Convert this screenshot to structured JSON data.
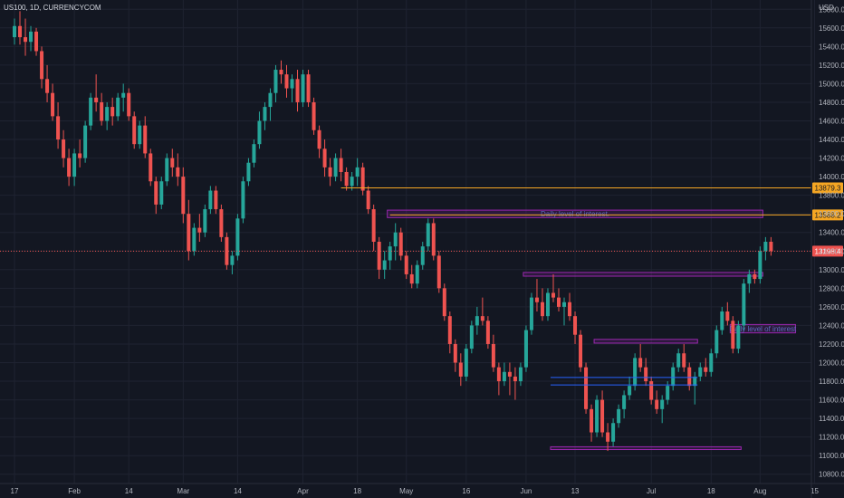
{
  "header": {
    "symbol": "US100, 1D, CURRENCYCOM",
    "currency": "USD"
  },
  "chart_data": {
    "type": "candlestick",
    "title": "US100, 1D, CURRENCYCOM",
    "ylabel": "USD",
    "xlabel": "",
    "ylim": [
      10700,
      15900
    ],
    "grid": true,
    "y_ticks": [
      10800,
      11000,
      11200,
      11400,
      11600,
      11800,
      12000,
      12200,
      12400,
      12600,
      12800,
      13000,
      13200,
      13400,
      13600,
      13800,
      14000,
      14200,
      14400,
      14600,
      14800,
      15000,
      15200,
      15400,
      15600,
      15800
    ],
    "y_tick_labels": [
      "10800.0",
      "11000.0",
      "11200.0",
      "11400.0",
      "11600.0",
      "11800.0",
      "12000.0",
      "12200.0",
      "12400.0",
      "12600.0",
      "12800.0",
      "13000.0",
      "13200.0",
      "13400.0",
      "13600.0",
      "13800.0",
      "14000.0",
      "14200.0",
      "14400.0",
      "14600.0",
      "14800.0",
      "15000.0",
      "15200.0",
      "15400.0",
      "15600.0",
      "15800.0"
    ],
    "x_ticks": [
      {
        "label": "17",
        "index": 0
      },
      {
        "label": "Feb",
        "index": 11
      },
      {
        "label": "14",
        "index": 21
      },
      {
        "label": "Mar",
        "index": 31
      },
      {
        "label": "14",
        "index": 41
      },
      {
        "label": "Apr",
        "index": 53
      },
      {
        "label": "18",
        "index": 63
      },
      {
        "label": "May",
        "index": 72
      },
      {
        "label": "16",
        "index": 83
      },
      {
        "label": "Jun",
        "index": 94
      },
      {
        "label": "13",
        "index": 103
      },
      {
        "label": "Jul",
        "index": 117
      },
      {
        "label": "18",
        "index": 128
      },
      {
        "label": "Aug",
        "index": 137
      },
      {
        "label": "15",
        "index": 147
      }
    ],
    "candles": [
      [
        15500,
        15700,
        15420,
        15620
      ],
      [
        15620,
        15780,
        15420,
        15500
      ],
      [
        15500,
        15700,
        15300,
        15450
      ],
      [
        15450,
        15620,
        15350,
        15560
      ],
      [
        15560,
        15600,
        15300,
        15350
      ],
      [
        15350,
        15400,
        14950,
        15050
      ],
      [
        15050,
        15200,
        14800,
        14900
      ],
      [
        14900,
        15000,
        14600,
        14650
      ],
      [
        14650,
        14800,
        14300,
        14400
      ],
      [
        14400,
        14500,
        14100,
        14200
      ],
      [
        14200,
        14300,
        13900,
        14000
      ],
      [
        14000,
        14300,
        13900,
        14250
      ],
      [
        14250,
        14400,
        14100,
        14200
      ],
      [
        14200,
        14600,
        14150,
        14550
      ],
      [
        14550,
        14900,
        14500,
        14850
      ],
      [
        14850,
        15100,
        14700,
        14800
      ],
      [
        14800,
        14900,
        14550,
        14600
      ],
      [
        14600,
        14800,
        14500,
        14750
      ],
      [
        14750,
        14850,
        14550,
        14650
      ],
      [
        14650,
        14900,
        14600,
        14850
      ],
      [
        14850,
        15000,
        14700,
        14900
      ],
      [
        14900,
        14950,
        14600,
        14650
      ],
      [
        14650,
        14700,
        14300,
        14350
      ],
      [
        14350,
        14600,
        14300,
        14550
      ],
      [
        14550,
        14650,
        14200,
        14250
      ],
      [
        14250,
        14300,
        13900,
        13950
      ],
      [
        13950,
        14000,
        13600,
        13700
      ],
      [
        13700,
        14000,
        13650,
        13950
      ],
      [
        13950,
        14250,
        13900,
        14200
      ],
      [
        14200,
        14300,
        14000,
        14100
      ],
      [
        14100,
        14250,
        13900,
        14000
      ],
      [
        14000,
        14100,
        13500,
        13600
      ],
      [
        13600,
        13750,
        13100,
        13200
      ],
      [
        13200,
        13500,
        13150,
        13450
      ],
      [
        13450,
        13600,
        13300,
        13400
      ],
      [
        13400,
        13700,
        13350,
        13650
      ],
      [
        13650,
        13900,
        13600,
        13850
      ],
      [
        13850,
        13900,
        13600,
        13650
      ],
      [
        13650,
        13700,
        13300,
        13350
      ],
      [
        13350,
        13400,
        13000,
        13050
      ],
      [
        13050,
        13200,
        12950,
        13150
      ],
      [
        13150,
        13600,
        13100,
        13550
      ],
      [
        13550,
        14000,
        13500,
        13950
      ],
      [
        13950,
        14200,
        13900,
        14150
      ],
      [
        14150,
        14400,
        14100,
        14350
      ],
      [
        14350,
        14700,
        14300,
        14600
      ],
      [
        14600,
        14800,
        14500,
        14750
      ],
      [
        14750,
        14950,
        14600,
        14900
      ],
      [
        14900,
        15200,
        14800,
        15150
      ],
      [
        15150,
        15250,
        15000,
        15100
      ],
      [
        15100,
        15200,
        14850,
        14950
      ],
      [
        14950,
        15100,
        14800,
        15050
      ],
      [
        15050,
        15150,
        14700,
        14800
      ],
      [
        14800,
        15150,
        14750,
        15100
      ],
      [
        15100,
        15150,
        14750,
        14800
      ],
      [
        14800,
        14850,
        14450,
        14500
      ],
      [
        14500,
        14550,
        14200,
        14300
      ],
      [
        14300,
        14400,
        14000,
        14100
      ],
      [
        14100,
        14200,
        13900,
        14000
      ],
      [
        14000,
        14250,
        13950,
        14200
      ],
      [
        14200,
        14300,
        13950,
        14050
      ],
      [
        14050,
        14100,
        13850,
        13900
      ],
      [
        13900,
        14050,
        13850,
        14000
      ],
      [
        14000,
        14200,
        13900,
        14100
      ],
      [
        14100,
        14150,
        13800,
        13850
      ],
      [
        13850,
        13900,
        13600,
        13650
      ],
      [
        13650,
        13700,
        13200,
        13300
      ],
      [
        13300,
        13350,
        12900,
        13000
      ],
      [
        13000,
        13200,
        12900,
        13100
      ],
      [
        13100,
        13300,
        13000,
        13250
      ],
      [
        13250,
        13500,
        13100,
        13400
      ],
      [
        13400,
        13450,
        13100,
        13150
      ],
      [
        13150,
        13200,
        12900,
        12950
      ],
      [
        12950,
        13050,
        12800,
        12850
      ],
      [
        12850,
        13100,
        12800,
        13050
      ],
      [
        13050,
        13300,
        13000,
        13250
      ],
      [
        13250,
        13550,
        13200,
        13500
      ],
      [
        13500,
        13550,
        13100,
        13150
      ],
      [
        13150,
        13200,
        12750,
        12800
      ],
      [
        12800,
        12850,
        12450,
        12500
      ],
      [
        12500,
        12550,
        12100,
        12200
      ],
      [
        12200,
        12250,
        11900,
        12000
      ],
      [
        12000,
        12100,
        11750,
        11850
      ],
      [
        11850,
        12200,
        11800,
        12150
      ],
      [
        12150,
        12450,
        12100,
        12400
      ],
      [
        12400,
        12600,
        12300,
        12500
      ],
      [
        12500,
        12700,
        12400,
        12450
      ],
      [
        12450,
        12500,
        12150,
        12200
      ],
      [
        12200,
        12300,
        11900,
        11950
      ],
      [
        11950,
        12000,
        11650,
        11800
      ],
      [
        11800,
        12000,
        11750,
        11900
      ],
      [
        11900,
        12000,
        11650,
        11850
      ],
      [
        11850,
        11950,
        11600,
        11800
      ],
      [
        11800,
        12000,
        11750,
        11950
      ],
      [
        11950,
        12400,
        11900,
        12350
      ],
      [
        12350,
        12750,
        12300,
        12700
      ],
      [
        12700,
        12900,
        12550,
        12650
      ],
      [
        12650,
        12800,
        12450,
        12500
      ],
      [
        12500,
        12800,
        12450,
        12750
      ],
      [
        12750,
        12950,
        12650,
        12700
      ],
      [
        12700,
        12800,
        12550,
        12600
      ],
      [
        12600,
        12700,
        12400,
        12650
      ],
      [
        12650,
        12750,
        12450,
        12500
      ],
      [
        12500,
        12550,
        12200,
        12300
      ],
      [
        12300,
        12350,
        11900,
        11950
      ],
      [
        11950,
        12000,
        11450,
        11500
      ],
      [
        11500,
        11550,
        11150,
        11250
      ],
      [
        11250,
        11650,
        11200,
        11600
      ],
      [
        11600,
        11700,
        11200,
        11250
      ],
      [
        11250,
        11350,
        11050,
        11150
      ],
      [
        11150,
        11400,
        11100,
        11350
      ],
      [
        11350,
        11550,
        11300,
        11500
      ],
      [
        11500,
        11700,
        11400,
        11650
      ],
      [
        11650,
        11850,
        11600,
        11750
      ],
      [
        11750,
        12100,
        11700,
        12050
      ],
      [
        12050,
        12200,
        11900,
        11950
      ],
      [
        11950,
        12050,
        11750,
        11800
      ],
      [
        11800,
        11850,
        11550,
        11600
      ],
      [
        11600,
        11700,
        11450,
        11500
      ],
      [
        11500,
        11650,
        11350,
        11600
      ],
      [
        11600,
        11800,
        11550,
        11750
      ],
      [
        11750,
        12000,
        11700,
        11950
      ],
      [
        11950,
        12150,
        11900,
        12100
      ],
      [
        12100,
        12200,
        11900,
        11950
      ],
      [
        11950,
        12000,
        11700,
        11750
      ],
      [
        11750,
        11900,
        11550,
        11850
      ],
      [
        11850,
        12000,
        11800,
        11950
      ],
      [
        11950,
        12050,
        11850,
        11900
      ],
      [
        11900,
        12150,
        11850,
        12100
      ],
      [
        12100,
        12400,
        12050,
        12350
      ],
      [
        12350,
        12600,
        12300,
        12550
      ],
      [
        12550,
        12650,
        12400,
        12450
      ],
      [
        12450,
        12500,
        12100,
        12150
      ],
      [
        12150,
        12450,
        12100,
        12400
      ],
      [
        12400,
        12900,
        12350,
        12850
      ],
      [
        12850,
        13000,
        12750,
        12950
      ],
      [
        12950,
        13000,
        12850,
        12900
      ],
      [
        12900,
        13250,
        12850,
        13200
      ],
      [
        13200,
        13350,
        13100,
        13300
      ],
      [
        13300,
        13350,
        13150,
        13200
      ]
    ],
    "last_price": 13198.4,
    "last_price_label": "13198.4",
    "levels": [
      {
        "price": 13879.3,
        "label": "13879.3",
        "color": "#f5a623",
        "from_index": 60
      },
      {
        "price": 13588.2,
        "label": "13588.2",
        "color": "#f5a623",
        "from_index": 69
      }
    ],
    "zones": [
      {
        "top": 13640,
        "bottom": 13560,
        "from_index": 69,
        "to_index": 137,
        "color": "#9c27b0",
        "text": "Daily level of interest."
      },
      {
        "top": 12970,
        "bottom": 12930,
        "from_index": 94,
        "to_index": 137,
        "color": "#9c27b0",
        "text": ""
      },
      {
        "top": 12410,
        "bottom": 12320,
        "from_index": 132,
        "to_index": 143,
        "color": "#9c27b0",
        "text": "Daily level of interest"
      },
      {
        "top": 12250,
        "bottom": 12210,
        "from_index": 107,
        "to_index": 125,
        "color": "#9c27b0",
        "text": ""
      },
      {
        "top": 11095,
        "bottom": 11065,
        "from_index": 99,
        "to_index": 133,
        "color": "#9c27b0",
        "text": ""
      }
    ],
    "lines": [
      {
        "price": 11840,
        "from_index": 99,
        "to_index": 125,
        "color": "#2962ff"
      },
      {
        "price": 11760,
        "from_index": 99,
        "to_index": 125,
        "color": "#2962ff"
      }
    ],
    "colors": {
      "up": "#26a69a",
      "down": "#ef5350",
      "background": "#131722",
      "grid": "#1f2331",
      "text": "#b2b5be",
      "zone_text": "#5c6bc0",
      "last_price_line": "#ef5350"
    }
  }
}
